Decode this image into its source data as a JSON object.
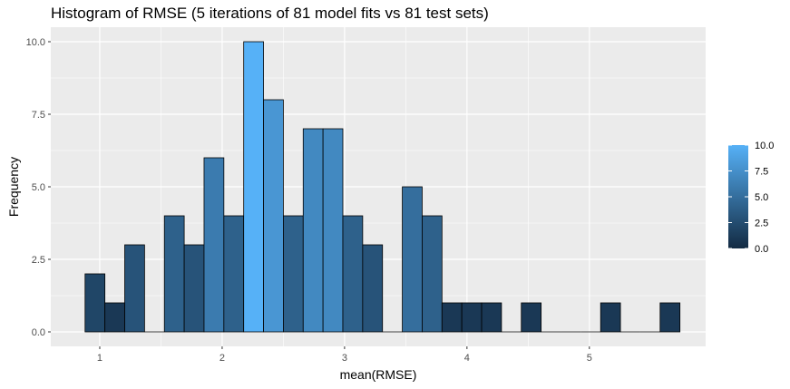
{
  "chart_data": {
    "type": "bar",
    "title": "Histogram of RMSE (5 iterations of 81 model fits vs 81 test sets)",
    "xlabel": "mean(RMSE)",
    "ylabel": "Frequency",
    "xlim": [
      0.6,
      5.95
    ],
    "ylim": [
      -0.5,
      10.5
    ],
    "x_ticks": [
      1,
      2,
      3,
      4,
      5
    ],
    "x_tick_labels": [
      "1",
      "2",
      "3",
      "4",
      "5"
    ],
    "y_ticks": [
      0,
      2.5,
      5,
      7.5,
      10
    ],
    "y_tick_labels": [
      "0.0",
      "2.5",
      "5.0",
      "7.5",
      "10.0"
    ],
    "bin_width": 0.162,
    "bin_starts": [
      0.88,
      1.042,
      1.204,
      1.366,
      1.528,
      1.69,
      1.852,
      2.014,
      2.176,
      2.338,
      2.5,
      2.662,
      2.824,
      2.986,
      3.148,
      3.31,
      3.472,
      3.634,
      3.796,
      3.958,
      4.12,
      4.282,
      4.444,
      4.606,
      4.768,
      4.93,
      5.092,
      5.254,
      5.416,
      5.578
    ],
    "values": [
      2,
      1,
      3,
      0,
      4,
      3,
      6,
      4,
      10,
      8,
      4,
      7,
      7,
      4,
      3,
      0,
      5,
      4,
      1,
      1,
      1,
      0,
      1,
      0,
      0,
      0,
      1,
      0,
      0,
      1
    ],
    "grid": true,
    "fill_scale": {
      "low": "#132b43",
      "high": "#56b1f7"
    },
    "legend": {
      "position": "right",
      "labels": [
        "10.0",
        "7.5",
        "5.0",
        "2.5",
        "0.0"
      ],
      "values": [
        10,
        7.5,
        5,
        2.5,
        0
      ]
    }
  },
  "colors": {
    "panel_background": "#ebebeb",
    "gridline": "#ffffff",
    "bar_outline": "#000000",
    "text": "#000000",
    "tick_text": "#4d4d4d"
  }
}
